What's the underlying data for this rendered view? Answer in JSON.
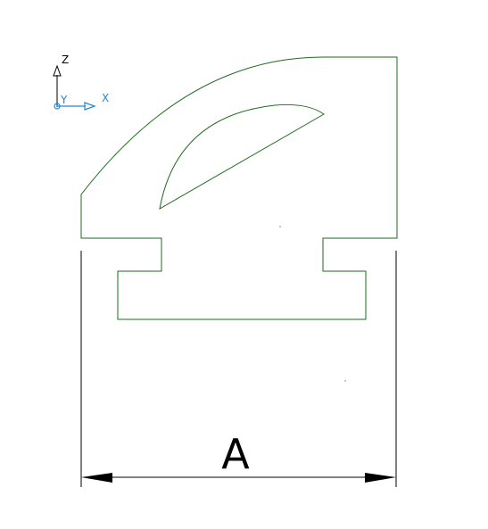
{
  "triad": {
    "z_label": "Z",
    "y_label": "Y",
    "x_label": "X",
    "z_color": "#000000",
    "x_color": "#1f86e0",
    "y_color": "#1f86e0"
  },
  "profile": {
    "stroke_color": "#1a6b1a"
  },
  "dimension": {
    "label": "A",
    "color": "#000000"
  }
}
